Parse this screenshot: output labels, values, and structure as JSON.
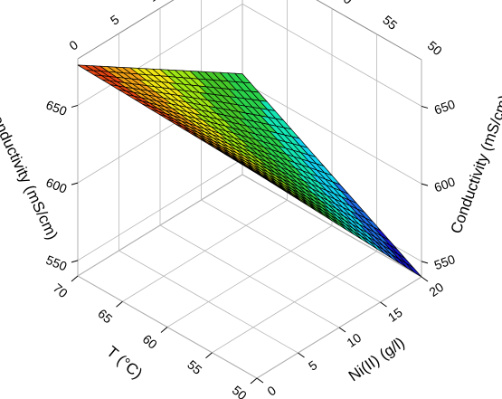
{
  "chart_data": {
    "type": "surface3d",
    "title": "",
    "x_axis": {
      "label": "T (°C)",
      "ticks": [
        50,
        55,
        60,
        65,
        70
      ],
      "range": [
        50,
        70
      ]
    },
    "y_axis": {
      "label": "Ni(II) (g/l)",
      "ticks": [
        0,
        5,
        10,
        15,
        20
      ],
      "range": [
        0,
        20
      ]
    },
    "z_axis": {
      "label": "Conductivity (mS/cm)",
      "ticks": [
        550,
        600,
        650
      ],
      "range": [
        540,
        680
      ]
    },
    "surface": {
      "T": [
        50,
        55,
        60,
        65,
        70
      ],
      "Ni": [
        0,
        5,
        10,
        15,
        20
      ],
      "conductivity_at_corners": {
        "T50_Ni0": 672,
        "T70_Ni0": 676,
        "T50_Ni20": 540,
        "T70_Ni20": 605
      }
    },
    "colormap": [
      "#1414c8",
      "#1e6ee6",
      "#12d2f0",
      "#14e6b4",
      "#2ad24a",
      "#46c828",
      "#9ee614",
      "#f0e614",
      "#f0a014",
      "#e64614"
    ],
    "grid": true
  }
}
